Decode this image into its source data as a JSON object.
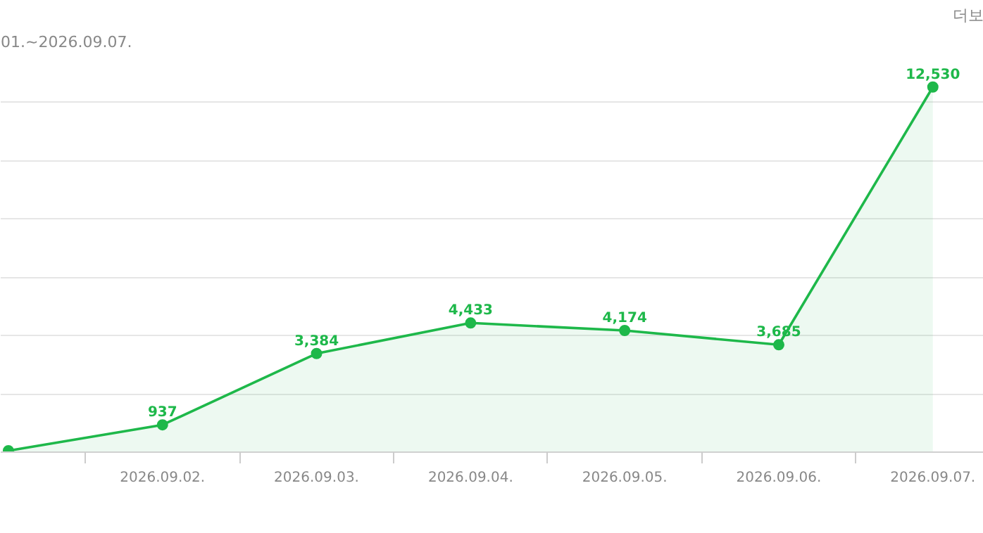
{
  "chart_data": {
    "type": "area",
    "categories": [
      null,
      "2026.09.02.",
      "2026.09.03.",
      "2026.09.04.",
      "2026.09.05.",
      "2026.09.06.",
      "2026.09.07."
    ],
    "values": [
      50,
      937,
      3384,
      4433,
      4174,
      3685,
      12530
    ],
    "value_labels": [
      null,
      "937",
      "3,384",
      "4,433",
      "4,174",
      "3,685",
      "12,530"
    ],
    "color": "#1eb84a",
    "marker": "circle",
    "grid": "y",
    "tick_labels": "x",
    "annotations": [
      "01.~2026.09.07.",
      "더보"
    ]
  }
}
